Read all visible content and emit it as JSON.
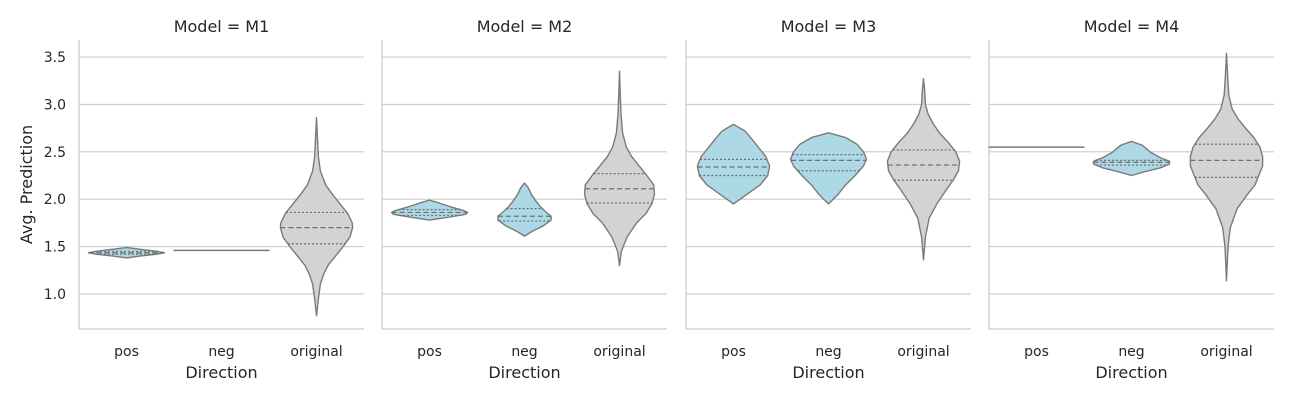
{
  "chart_data": {
    "type": "violin",
    "ylabel": "Avg. Prediction",
    "xlabel": "Direction",
    "categories": [
      "pos",
      "neg",
      "original"
    ],
    "yticks": [
      1.0,
      1.5,
      2.0,
      2.5,
      3.0,
      3.5
    ],
    "ylim": [
      0.63,
      3.68
    ],
    "grid": "horizontal",
    "colors": {
      "counterfactual": "#add8e6",
      "original": "#d3d3d3",
      "outline": "#7a7a7a"
    },
    "panels": [
      {
        "title": "Model = M1",
        "violins": [
          {
            "category": "pos",
            "min": 1.38,
            "max": 1.49,
            "q1": 1.42,
            "median": 1.435,
            "q3": 1.45,
            "profile": [
              [
                1.38,
                0.0
              ],
              [
                1.4,
                0.35
              ],
              [
                1.42,
                0.8
              ],
              [
                1.435,
                1.0
              ],
              [
                1.45,
                0.8
              ],
              [
                1.47,
                0.4
              ],
              [
                1.49,
                0.0
              ]
            ]
          },
          {
            "category": "neg",
            "min": 1.46,
            "max": 1.46,
            "q1": 1.46,
            "median": 1.46,
            "q3": 1.46,
            "profile": []
          },
          {
            "category": "original",
            "min": 0.77,
            "max": 2.86,
            "q1": 1.53,
            "median": 1.7,
            "q3": 1.86,
            "profile": [
              [
                0.77,
                0.0
              ],
              [
                0.95,
                0.05
              ],
              [
                1.1,
                0.1
              ],
              [
                1.2,
                0.18
              ],
              [
                1.3,
                0.3
              ],
              [
                1.4,
                0.5
              ],
              [
                1.5,
                0.7
              ],
              [
                1.6,
                0.88
              ],
              [
                1.7,
                0.95
              ],
              [
                1.75,
                0.94
              ],
              [
                1.85,
                0.82
              ],
              [
                1.95,
                0.62
              ],
              [
                2.05,
                0.42
              ],
              [
                2.15,
                0.24
              ],
              [
                2.3,
                0.1
              ],
              [
                2.45,
                0.05
              ],
              [
                2.6,
                0.03
              ],
              [
                2.86,
                0.0
              ]
            ]
          }
        ]
      },
      {
        "title": "Model = M2",
        "violins": [
          {
            "category": "pos",
            "min": 1.78,
            "max": 1.99,
            "q1": 1.83,
            "median": 1.86,
            "q3": 1.89,
            "profile": [
              [
                1.78,
                0.0
              ],
              [
                1.81,
                0.5
              ],
              [
                1.84,
                0.95
              ],
              [
                1.86,
                1.0
              ],
              [
                1.88,
                0.9
              ],
              [
                1.92,
                0.55
              ],
              [
                1.96,
                0.25
              ],
              [
                1.99,
                0.0
              ]
            ]
          },
          {
            "category": "neg",
            "min": 1.61,
            "max": 2.17,
            "q1": 1.77,
            "median": 1.82,
            "q3": 1.9,
            "profile": [
              [
                1.61,
                0.0
              ],
              [
                1.66,
                0.2
              ],
              [
                1.72,
                0.5
              ],
              [
                1.78,
                0.7
              ],
              [
                1.82,
                0.7
              ],
              [
                1.87,
                0.55
              ],
              [
                1.92,
                0.42
              ],
              [
                1.98,
                0.3
              ],
              [
                2.05,
                0.18
              ],
              [
                2.12,
                0.1
              ],
              [
                2.17,
                0.0
              ]
            ]
          },
          {
            "category": "original",
            "min": 1.3,
            "max": 3.35,
            "q1": 1.96,
            "median": 2.11,
            "q3": 2.27,
            "profile": [
              [
                1.3,
                0.0
              ],
              [
                1.45,
                0.05
              ],
              [
                1.6,
                0.2
              ],
              [
                1.75,
                0.45
              ],
              [
                1.85,
                0.7
              ],
              [
                1.95,
                0.85
              ],
              [
                2.05,
                0.92
              ],
              [
                2.15,
                0.9
              ],
              [
                2.25,
                0.72
              ],
              [
                2.35,
                0.52
              ],
              [
                2.45,
                0.32
              ],
              [
                2.55,
                0.18
              ],
              [
                2.7,
                0.08
              ],
              [
                2.9,
                0.04
              ],
              [
                3.1,
                0.02
              ],
              [
                3.35,
                0.0
              ]
            ]
          }
        ]
      },
      {
        "title": "Model = M3",
        "violins": [
          {
            "category": "pos",
            "min": 1.95,
            "max": 2.79,
            "q1": 2.25,
            "median": 2.34,
            "q3": 2.42,
            "profile": [
              [
                1.95,
                0.0
              ],
              [
                2.05,
                0.35
              ],
              [
                2.15,
                0.7
              ],
              [
                2.25,
                0.9
              ],
              [
                2.35,
                0.95
              ],
              [
                2.45,
                0.85
              ],
              [
                2.55,
                0.65
              ],
              [
                2.65,
                0.45
              ],
              [
                2.72,
                0.3
              ],
              [
                2.79,
                0.0
              ]
            ]
          },
          {
            "category": "neg",
            "min": 1.95,
            "max": 2.7,
            "q1": 2.3,
            "median": 2.41,
            "q3": 2.47,
            "profile": [
              [
                1.95,
                0.0
              ],
              [
                2.05,
                0.25
              ],
              [
                2.15,
                0.45
              ],
              [
                2.25,
                0.7
              ],
              [
                2.35,
                0.92
              ],
              [
                2.42,
                1.0
              ],
              [
                2.5,
                0.92
              ],
              [
                2.58,
                0.75
              ],
              [
                2.65,
                0.45
              ],
              [
                2.7,
                0.0
              ]
            ]
          },
          {
            "category": "original",
            "min": 1.36,
            "max": 3.27,
            "q1": 2.2,
            "median": 2.36,
            "q3": 2.52,
            "profile": [
              [
                1.36,
                0.0
              ],
              [
                1.6,
                0.05
              ],
              [
                1.8,
                0.15
              ],
              [
                1.95,
                0.35
              ],
              [
                2.1,
                0.6
              ],
              [
                2.2,
                0.78
              ],
              [
                2.3,
                0.92
              ],
              [
                2.4,
                0.95
              ],
              [
                2.5,
                0.85
              ],
              [
                2.6,
                0.65
              ],
              [
                2.7,
                0.42
              ],
              [
                2.8,
                0.25
              ],
              [
                2.9,
                0.12
              ],
              [
                3.0,
                0.05
              ],
              [
                3.15,
                0.03
              ],
              [
                3.27,
                0.0
              ]
            ]
          }
        ]
      },
      {
        "title": "Model = M4",
        "violins": [
          {
            "category": "pos",
            "min": 2.55,
            "max": 2.55,
            "q1": 2.55,
            "median": 2.55,
            "q3": 2.55,
            "profile": []
          },
          {
            "category": "neg",
            "min": 2.25,
            "max": 2.61,
            "q1": 2.36,
            "median": 2.39,
            "q3": 2.41,
            "profile": [
              [
                2.25,
                0.0
              ],
              [
                2.29,
                0.35
              ],
              [
                2.33,
                0.75
              ],
              [
                2.37,
                1.0
              ],
              [
                2.4,
                1.0
              ],
              [
                2.44,
                0.75
              ],
              [
                2.49,
                0.52
              ],
              [
                2.53,
                0.4
              ],
              [
                2.57,
                0.28
              ],
              [
                2.61,
                0.0
              ]
            ]
          },
          {
            "category": "original",
            "min": 1.14,
            "max": 3.54,
            "q1": 2.23,
            "median": 2.41,
            "q3": 2.58,
            "profile": [
              [
                1.14,
                0.0
              ],
              [
                1.5,
                0.04
              ],
              [
                1.7,
                0.1
              ],
              [
                1.9,
                0.28
              ],
              [
                2.05,
                0.55
              ],
              [
                2.15,
                0.75
              ],
              [
                2.25,
                0.85
              ],
              [
                2.35,
                0.95
              ],
              [
                2.45,
                0.95
              ],
              [
                2.55,
                0.88
              ],
              [
                2.65,
                0.72
              ],
              [
                2.75,
                0.5
              ],
              [
                2.85,
                0.3
              ],
              [
                2.95,
                0.15
              ],
              [
                3.1,
                0.06
              ],
              [
                3.3,
                0.03
              ],
              [
                3.54,
                0.0
              ]
            ]
          }
        ]
      }
    ]
  }
}
